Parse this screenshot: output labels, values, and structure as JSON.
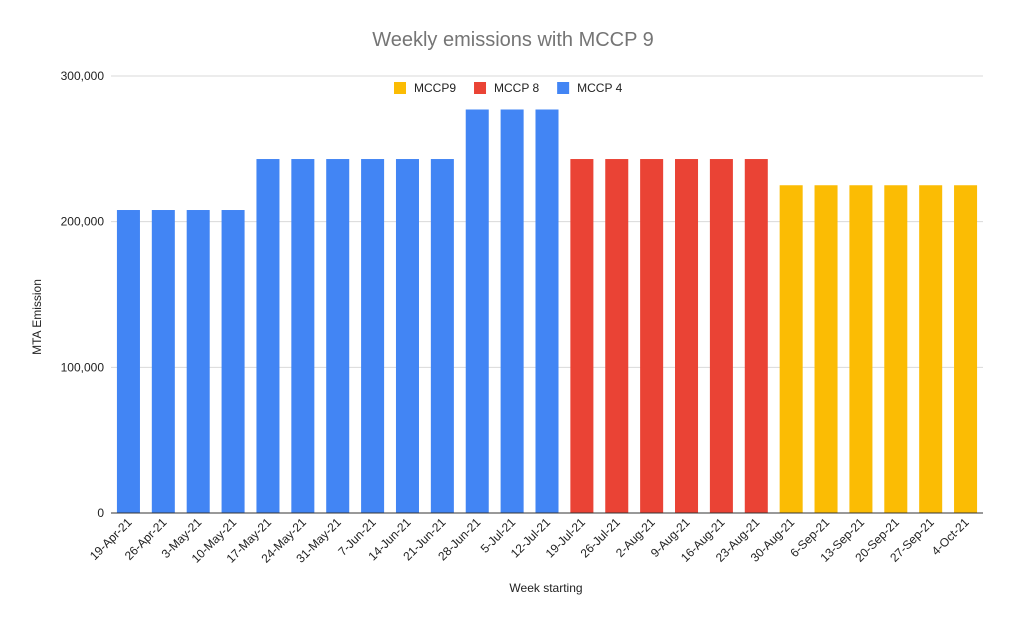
{
  "chart_data": {
    "type": "bar",
    "title": "Weekly emissions with MCCP 9",
    "xlabel": "Week starting",
    "ylabel": "MTA Emission",
    "ylim": [
      0,
      300000
    ],
    "yticks": [
      0,
      100000,
      200000,
      300000
    ],
    "ytick_labels": [
      "0",
      "100,000",
      "200,000",
      "300,000"
    ],
    "grid": true,
    "legend_position": "top-center",
    "legend": [
      {
        "name": "MCCP9",
        "color": "#fbbc04"
      },
      {
        "name": "MCCP 8",
        "color": "#ea4335"
      },
      {
        "name": "MCCP 4",
        "color": "#4285f4"
      }
    ],
    "categories": [
      "19-Apr-21",
      "26-Apr-21",
      "3-May-21",
      "10-May-21",
      "17-May-21",
      "24-May-21",
      "31-May-21",
      "7-Jun-21",
      "14-Jun-21",
      "21-Jun-21",
      "28-Jun-21",
      "5-Jul-21",
      "12-Jul-21",
      "19-Jul-21",
      "26-Jul-21",
      "2-Aug-21",
      "9-Aug-21",
      "16-Aug-21",
      "23-Aug-21",
      "30-Aug-21",
      "6-Sep-21",
      "13-Sep-21",
      "20-Sep-21",
      "27-Sep-21",
      "4-Oct-21"
    ],
    "series": [
      {
        "name": "MCCP 4",
        "color": "#4285f4",
        "values": [
          208000,
          208000,
          208000,
          208000,
          243000,
          243000,
          243000,
          243000,
          243000,
          243000,
          277000,
          277000,
          277000,
          null,
          null,
          null,
          null,
          null,
          null,
          null,
          null,
          null,
          null,
          null,
          null
        ]
      },
      {
        "name": "MCCP 8",
        "color": "#ea4335",
        "values": [
          null,
          null,
          null,
          null,
          null,
          null,
          null,
          null,
          null,
          null,
          null,
          null,
          null,
          243000,
          243000,
          243000,
          243000,
          243000,
          243000,
          null,
          null,
          null,
          null,
          null,
          null
        ]
      },
      {
        "name": "MCCP9",
        "color": "#fbbc04",
        "values": [
          null,
          null,
          null,
          null,
          null,
          null,
          null,
          null,
          null,
          null,
          null,
          null,
          null,
          null,
          null,
          null,
          null,
          null,
          null,
          225000,
          225000,
          225000,
          225000,
          225000,
          225000
        ]
      }
    ]
  }
}
